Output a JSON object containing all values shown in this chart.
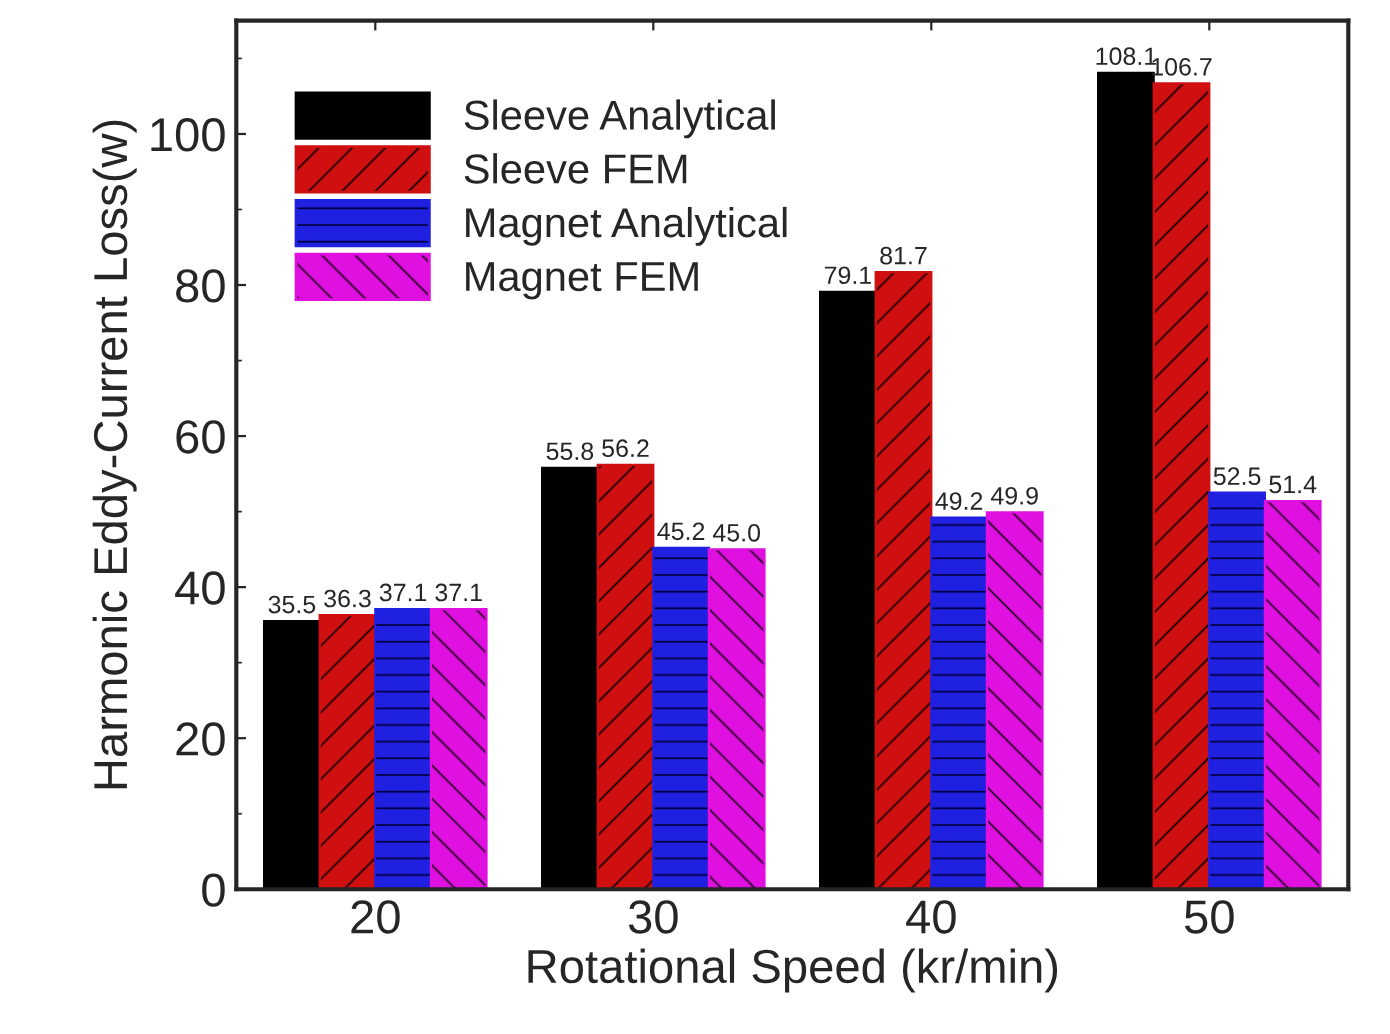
{
  "chart_data": {
    "type": "bar",
    "xlabel": "Rotational Speed (kr/min)",
    "ylabel": "Harmonic Eddy-Current Loss(w)",
    "categories": [
      "20",
      "30",
      "40",
      "50"
    ],
    "series": [
      {
        "name": "Sleeve Analytical",
        "color": "#000000",
        "values": [
          35.5,
          55.8,
          79.1,
          108.1
        ],
        "value_labels": [
          "35.5",
          "55.8",
          "79.1",
          "108.1"
        ]
      },
      {
        "name": "Sleeve FEM",
        "color": "#d01010",
        "values": [
          36.3,
          56.2,
          81.7,
          106.7
        ],
        "value_labels": [
          "36.3",
          "56.2",
          "81.7",
          "106.7"
        ]
      },
      {
        "name": "Magnet Analytical",
        "color": "#2020e0",
        "values": [
          37.1,
          45.2,
          49.2,
          52.5
        ],
        "value_labels": [
          "37.1",
          "45.2",
          "49.2",
          "52.5"
        ]
      },
      {
        "name": "Magnet FEM",
        "color": "#e010e0",
        "values": [
          37.1,
          45.0,
          49.9,
          51.4
        ],
        "value_labels": [
          "37.1",
          "45.0",
          "49.9",
          "51.4"
        ]
      }
    ],
    "ylim": [
      0,
      115
    ],
    "yticks": [
      0,
      20,
      40,
      60,
      80,
      100
    ],
    "legend": "top left",
    "grid": false
  }
}
